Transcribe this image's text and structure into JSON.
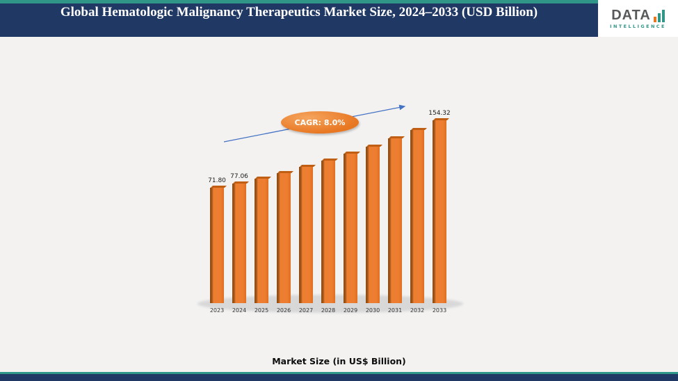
{
  "header": {
    "title": "Global Hematologic Malignancy Therapeutics Market Size, 2024–2033 (USD Billion)",
    "logo": {
      "name": "DATA",
      "subtitle": "INTELLIGENCE",
      "icon": "bar-chart-icon"
    }
  },
  "colors": {
    "navy": "#203864",
    "teal": "#2f9688",
    "orange": "#e87722",
    "bar_edge": "#8a4a10",
    "arrow_blue": "#4472c4"
  },
  "chart_data": {
    "type": "bar",
    "title": "Global Hematologic Malignancy Therapeutics Market Size, 2024–2033 (USD Billion)",
    "categories": [
      "2023",
      "2024",
      "2025",
      "2026",
      "2027",
      "2028",
      "2029",
      "2030",
      "2031",
      "2032",
      "2033"
    ],
    "values": [
      71.8,
      77.06,
      83.22,
      89.88,
      97.07,
      104.84,
      113.23,
      122.28,
      132.07,
      142.63,
      154.32
    ],
    "bar_labels": [
      "71.80",
      "77.06",
      "",
      "",
      "",
      "",
      "",
      "",
      "",
      "",
      "154.32"
    ],
    "cagr_label": "CAGR: 8.0%",
    "caption": "Market Size (in US$ Billion)",
    "xlabel": "",
    "ylabel": "Market Size (in US$ Billion)",
    "legend": false,
    "grid": false,
    "bar_color": "#ed7d31"
  }
}
